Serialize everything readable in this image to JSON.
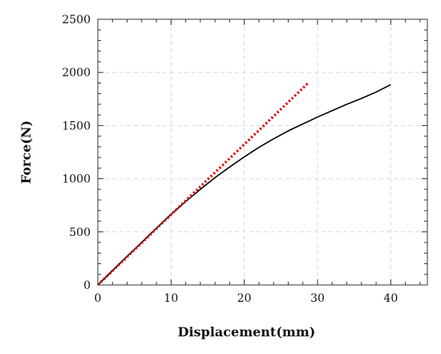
{
  "chart_data": {
    "type": "line",
    "xlabel": "Displacement(mm)",
    "ylabel": "Force(N)",
    "xlim": [
      0,
      45
    ],
    "ylim": [
      0,
      2500
    ],
    "x_major_ticks": [
      0,
      10,
      20,
      30,
      40
    ],
    "x_minor_step": 2,
    "y_major_ticks": [
      0,
      500,
      1000,
      1500,
      2000,
      2500
    ],
    "y_minor_step": 100,
    "grid": true,
    "series": [
      {
        "style": "solid",
        "color": "#000000",
        "x": [
          0,
          2,
          4,
          6,
          8,
          10,
          12,
          14,
          16,
          18,
          20,
          22,
          24,
          26,
          28,
          30,
          32,
          34,
          36,
          38,
          40
        ],
        "y": [
          0,
          135,
          270,
          400,
          535,
          665,
          785,
          900,
          1010,
          1110,
          1205,
          1295,
          1375,
          1450,
          1515,
          1580,
          1640,
          1700,
          1755,
          1815,
          1885
        ]
      },
      {
        "style": "dotted",
        "color": "#dd1111",
        "x": [
          0,
          28.8
        ],
        "y": [
          0,
          1905
        ]
      }
    ]
  }
}
